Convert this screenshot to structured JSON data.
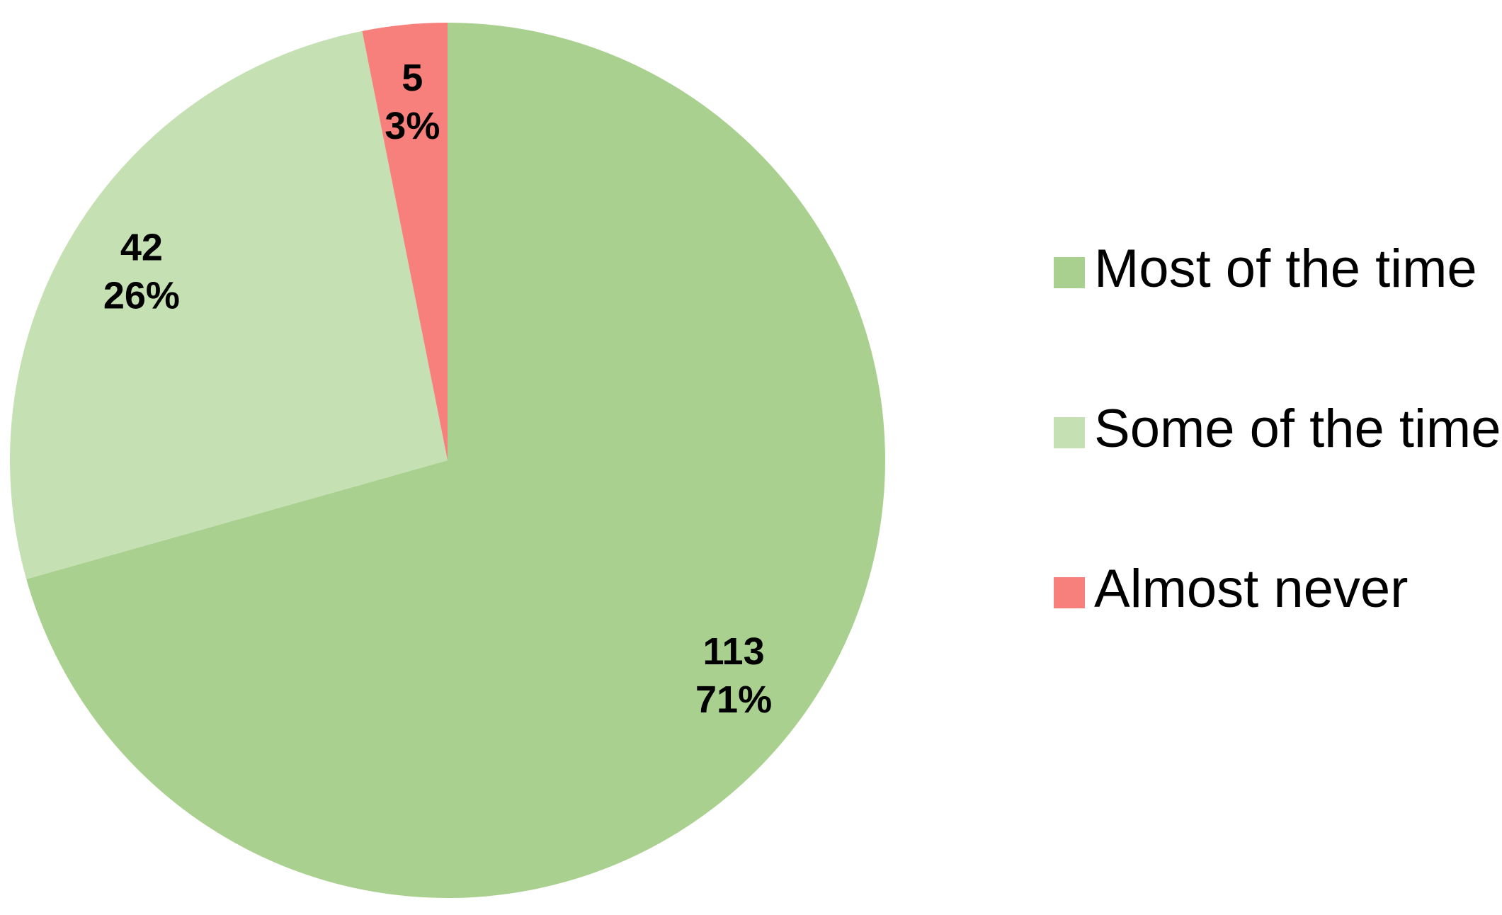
{
  "chart_data": {
    "type": "pie",
    "categories": [
      "Most of the time",
      "Some of the time",
      "Almost never"
    ],
    "values": [
      113,
      42,
      5
    ],
    "percent_labels": [
      "71%",
      "26%",
      "3%"
    ],
    "colors": [
      "#a9d08e",
      "#c5e0b3",
      "#f8807c"
    ],
    "legend": "right"
  }
}
